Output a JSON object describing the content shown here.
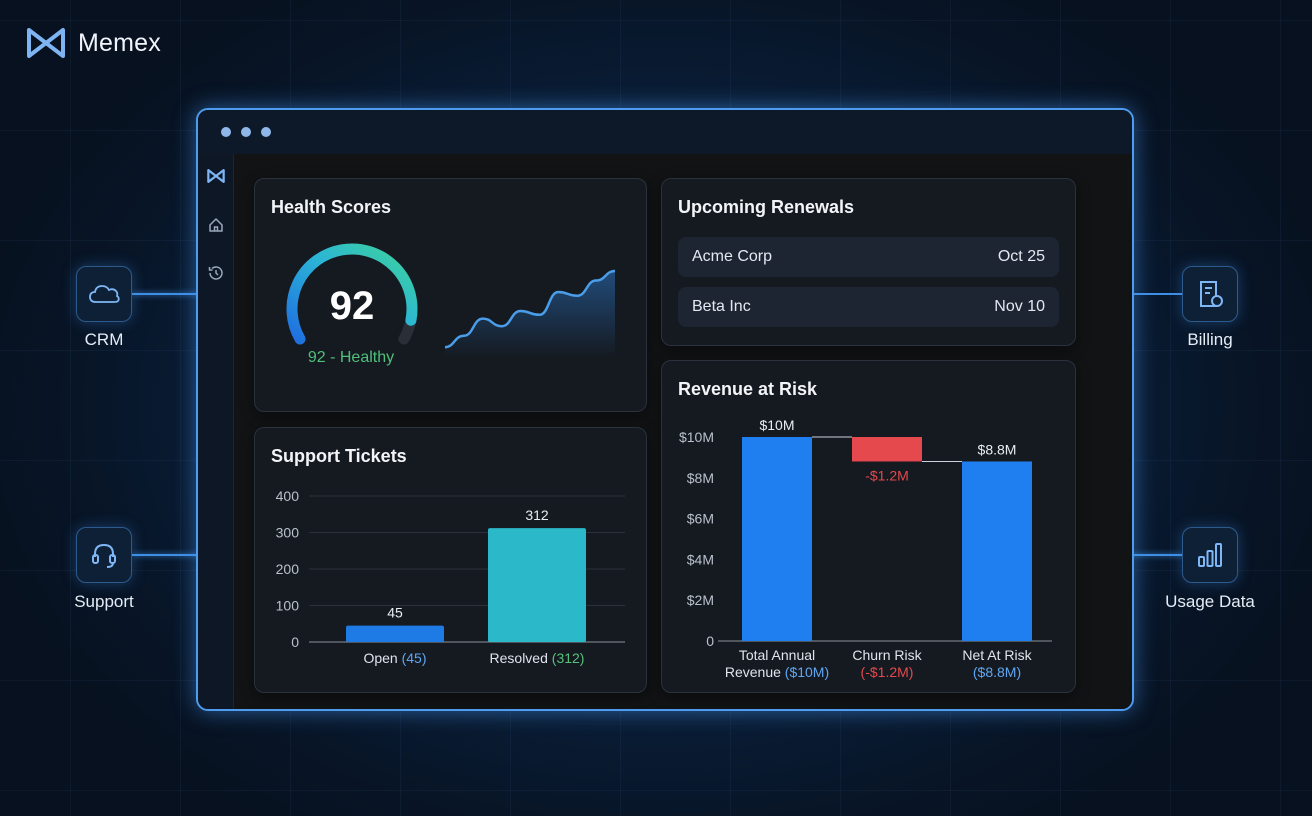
{
  "brand": {
    "name": "Memex"
  },
  "sources": {
    "crm": {
      "label": "CRM",
      "icon": "cloud-icon"
    },
    "support": {
      "label": "Support",
      "icon": "headset-icon"
    },
    "billing": {
      "label": "Billing",
      "icon": "invoice-icon"
    },
    "usage": {
      "label": "Usage Data",
      "icon": "bar-chart-icon"
    }
  },
  "sidebar": {
    "icons": [
      "memex-logo-icon",
      "home-icon",
      "history-icon"
    ]
  },
  "health": {
    "title": "Health Scores",
    "score": "92",
    "status": "92 - Healthy",
    "gauge_fraction": 0.92,
    "trend": [
      2,
      8,
      17,
      13,
      21,
      19,
      31,
      29,
      37,
      42
    ]
  },
  "renewals": {
    "title": "Upcoming Renewals",
    "items": [
      {
        "name": "Acme Corp",
        "date": "Oct 25"
      },
      {
        "name": "Beta Inc",
        "date": "Nov 10"
      }
    ]
  },
  "colors": {
    "accent": "#3f8fe6",
    "open_bar": "#1e7be6",
    "resolved_bar": "#2bb8c9",
    "waterfall_blue": "#1f7ff0",
    "waterfall_red": "#e5484d",
    "healthy_green": "#4fbf7a"
  },
  "chart_data": [
    {
      "type": "bar",
      "title": "Support Tickets",
      "categories": [
        "Open",
        "Resolved"
      ],
      "category_suffix": [
        "(45)",
        "(312)"
      ],
      "values": [
        45,
        312
      ],
      "data_labels": [
        "45",
        "312"
      ],
      "ylim": [
        0,
        400
      ],
      "yticks": [
        "0",
        "100",
        "200",
        "300",
        "400"
      ],
      "grid": true
    },
    {
      "type": "bar",
      "subtype": "waterfall",
      "title": "Revenue at Risk",
      "categories": [
        [
          "Total Annual",
          "Revenue"
        ],
        [
          "Churn Risk"
        ],
        [
          "Net At Risk"
        ]
      ],
      "category_suffix": [
        "($10M)",
        "(-$1.2M)",
        "($8.8M)"
      ],
      "values": [
        10,
        -1.2,
        8.8
      ],
      "data_labels": [
        "$10M",
        "-$1.2M",
        "$8.8M"
      ],
      "ylim": [
        0,
        10
      ],
      "yticks": [
        "0",
        "$2M",
        "$4M",
        "$6M",
        "$8M",
        "$10M"
      ],
      "grid": true
    }
  ]
}
